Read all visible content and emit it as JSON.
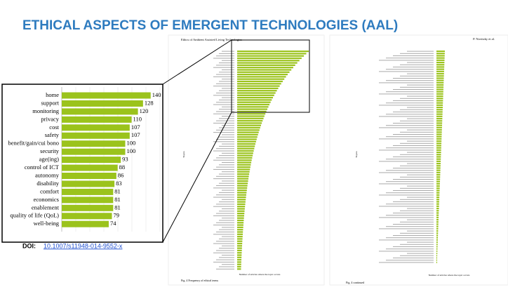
{
  "title": "ETHICAL ASPECTS OF EMERGENT TECHNOLOGIES (AAL)",
  "doi_label": "DOI:",
  "doi": "10.1007/s11948-014-9552-x",
  "left_page": {
    "header": "Ethics of Ambient Assisted Living Technologies",
    "caption": "Fig. 4  Frequency of ethical terms",
    "x_label": "Number of articles where the topic occurs",
    "y_label": "Topics"
  },
  "right_page": {
    "header": "P. Novitzky et al.",
    "caption": "Fig. 4  continued",
    "x_label": "Number of articles where the topic occurs",
    "y_label": "Topics"
  },
  "chart_data": {
    "type": "bar",
    "orientation": "horizontal",
    "categories": [
      "home",
      "support",
      "monitoring",
      "privacy",
      "cost",
      "safety",
      "benefit/gain/cui bono",
      "security",
      "age(ing)",
      "control of ICT",
      "autonomy",
      "disability",
      "comfort",
      "economics",
      "enablement",
      "quality of life (QoL)",
      "well-being"
    ],
    "values": [
      140,
      128,
      120,
      110,
      107,
      107,
      100,
      100,
      93,
      88,
      86,
      83,
      81,
      81,
      81,
      79,
      74
    ],
    "color": "#9bc31c",
    "xlim": [
      0,
      158
    ],
    "grid": true
  }
}
